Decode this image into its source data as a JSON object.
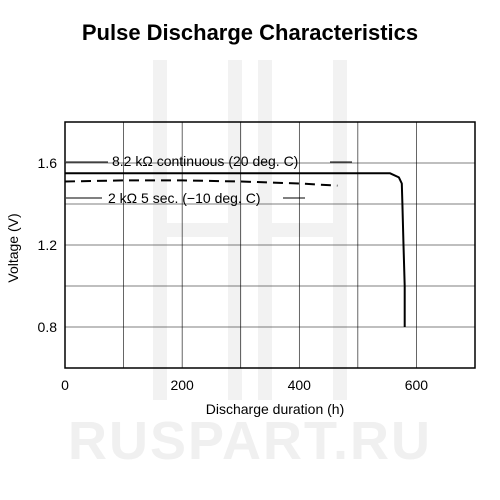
{
  "watermark": "RUSPART.RU",
  "chart_data": {
    "type": "line",
    "title": "Pulse Discharge Characteristics",
    "xlabel": "Discharge duration (h)",
    "ylabel": "Voltage (V)",
    "xlim": [
      0,
      700
    ],
    "ylim": [
      0.6,
      1.8
    ],
    "xticks": [
      0,
      200,
      400,
      600
    ],
    "yticks": [
      0.8,
      1.2,
      1.6
    ],
    "xtick_labels": [
      "0",
      "200",
      "400",
      "600"
    ],
    "ytick_labels": [
      "0.8",
      "1.2",
      "1.6"
    ],
    "grid": true,
    "series": [
      {
        "name": "8.2 kΩ continuous (20 deg. C)",
        "style": "solid",
        "color": "#000000",
        "x": [
          0,
          250,
          555,
          570,
          575,
          576,
          578,
          580,
          580
        ],
        "y": [
          1.55,
          1.55,
          1.55,
          1.53,
          1.5,
          1.4,
          1.2,
          1.0,
          0.8
        ]
      },
      {
        "name": "2 kΩ 5 sec. (−10 deg. C)",
        "style": "dashed",
        "color": "#000000",
        "x": [
          0,
          100,
          200,
          300,
          400,
          465
        ],
        "y": [
          1.51,
          1.515,
          1.515,
          1.51,
          1.5,
          1.49
        ]
      }
    ]
  }
}
